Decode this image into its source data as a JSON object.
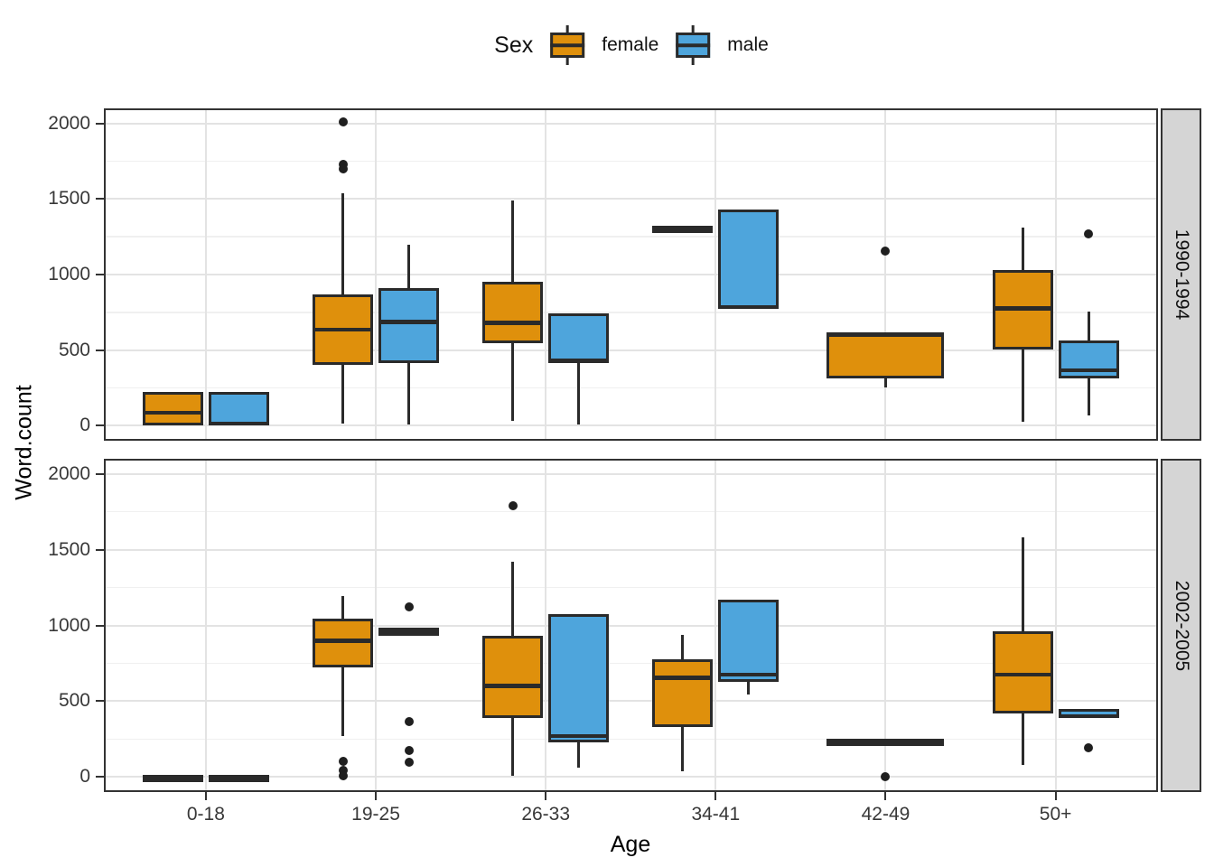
{
  "legend": {
    "title": "Sex",
    "items": [
      {
        "label": "female",
        "color": "#df900c"
      },
      {
        "label": "male",
        "color": "#4ea5dc"
      }
    ]
  },
  "chart_data": {
    "type": "boxplot",
    "title": "",
    "xlabel": "Age",
    "ylabel": "Word.count",
    "legend_title": "Sex",
    "legend_position": "top",
    "grid": true,
    "categories": [
      "0-18",
      "19-25",
      "26-33",
      "34-41",
      "42-49",
      "50+"
    ],
    "y_major": [
      0,
      500,
      1000,
      1500,
      2000
    ],
    "y_minor": [
      250,
      750,
      1250,
      1750
    ],
    "y_tick_labels": [
      "0",
      "500",
      "1000",
      "1500",
      "2000"
    ],
    "ylim": [
      -100,
      2100
    ],
    "series": [
      {
        "name": "female",
        "color": "#df900c"
      },
      {
        "name": "male",
        "color": "#4ea5dc"
      }
    ],
    "facets": [
      {
        "label": "1990-1994",
        "boxes": [
          {
            "category": "0-18",
            "sex": "female",
            "min": 0,
            "q1": 0,
            "median": 85,
            "q3": 220,
            "max": 220,
            "outliers": []
          },
          {
            "category": "0-18",
            "sex": "male",
            "min": 10,
            "q1": 10,
            "median": 15,
            "q3": 225,
            "max": 225,
            "outliers": []
          },
          {
            "category": "19-25",
            "sex": "female",
            "min": 15,
            "q1": 400,
            "median": 635,
            "q3": 870,
            "max": 1540,
            "outliers": [
              2010,
              1730,
              1700
            ]
          },
          {
            "category": "19-25",
            "sex": "male",
            "min": 10,
            "q1": 415,
            "median": 685,
            "q3": 910,
            "max": 1200,
            "outliers": []
          },
          {
            "category": "26-33",
            "sex": "female",
            "min": 30,
            "q1": 545,
            "median": 680,
            "q3": 955,
            "max": 1490,
            "outliers": []
          },
          {
            "category": "26-33",
            "sex": "male",
            "min": 5,
            "q1": 420,
            "median": 430,
            "q3": 740,
            "max": 740,
            "outliers": []
          },
          {
            "category": "34-41",
            "sex": "female",
            "min": 1310,
            "q1": 1310,
            "median": 1310,
            "q3": 1310,
            "max": 1310,
            "outliers": []
          },
          {
            "category": "34-41",
            "sex": "male",
            "min": 775,
            "q1": 775,
            "median": 785,
            "q3": 1430,
            "max": 1430,
            "outliers": []
          },
          {
            "category": "42-49",
            "sex": "female",
            "wide": true,
            "min": 255,
            "q1": 315,
            "median": 600,
            "q3": 615,
            "max": 615,
            "outliers": [
              1155
            ]
          },
          {
            "category": "50+",
            "sex": "female",
            "min": 25,
            "q1": 505,
            "median": 775,
            "q3": 1030,
            "max": 1310,
            "outliers": []
          },
          {
            "category": "50+",
            "sex": "male",
            "min": 65,
            "q1": 315,
            "median": 365,
            "q3": 565,
            "max": 755,
            "outliers": [
              1270
            ]
          }
        ]
      },
      {
        "label": "2002-2005",
        "boxes": [
          {
            "category": "0-18",
            "sex": "female",
            "min": 0,
            "q1": 0,
            "median": 0,
            "q3": 0,
            "max": 0,
            "outliers": []
          },
          {
            "category": "0-18",
            "sex": "male",
            "min": 0,
            "q1": 0,
            "median": 0,
            "q3": 0,
            "max": 0,
            "outliers": []
          },
          {
            "category": "19-25",
            "sex": "female",
            "min": 270,
            "q1": 725,
            "median": 900,
            "q3": 1045,
            "max": 1195,
            "outliers": [
              105,
              45,
              10
            ]
          },
          {
            "category": "19-25",
            "sex": "male",
            "min": 930,
            "q1": 930,
            "median": 955,
            "q3": 985,
            "max": 985,
            "outliers": [
              1120,
              365,
              175,
              95
            ]
          },
          {
            "category": "26-33",
            "sex": "female",
            "min": 5,
            "q1": 390,
            "median": 600,
            "q3": 930,
            "max": 1420,
            "outliers": [
              1790
            ]
          },
          {
            "category": "26-33",
            "sex": "male",
            "min": 60,
            "q1": 230,
            "median": 270,
            "q3": 1075,
            "max": 1075,
            "outliers": []
          },
          {
            "category": "34-41",
            "sex": "female",
            "min": 35,
            "q1": 330,
            "median": 655,
            "q3": 775,
            "max": 940,
            "outliers": []
          },
          {
            "category": "34-41",
            "sex": "male",
            "min": 545,
            "q1": 625,
            "median": 675,
            "q3": 1170,
            "max": 1170,
            "outliers": []
          },
          {
            "category": "42-49",
            "sex": "female",
            "wide": true,
            "min": 240,
            "q1": 240,
            "median": 240,
            "q3": 240,
            "max": 240,
            "outliers": [
              0
            ]
          },
          {
            "category": "50+",
            "sex": "female",
            "min": 80,
            "q1": 420,
            "median": 675,
            "q3": 960,
            "max": 1580,
            "outliers": []
          },
          {
            "category": "50+",
            "sex": "male",
            "min": 390,
            "q1": 390,
            "median": 400,
            "q3": 450,
            "max": 450,
            "outliers": [
              195
            ]
          }
        ]
      }
    ]
  }
}
